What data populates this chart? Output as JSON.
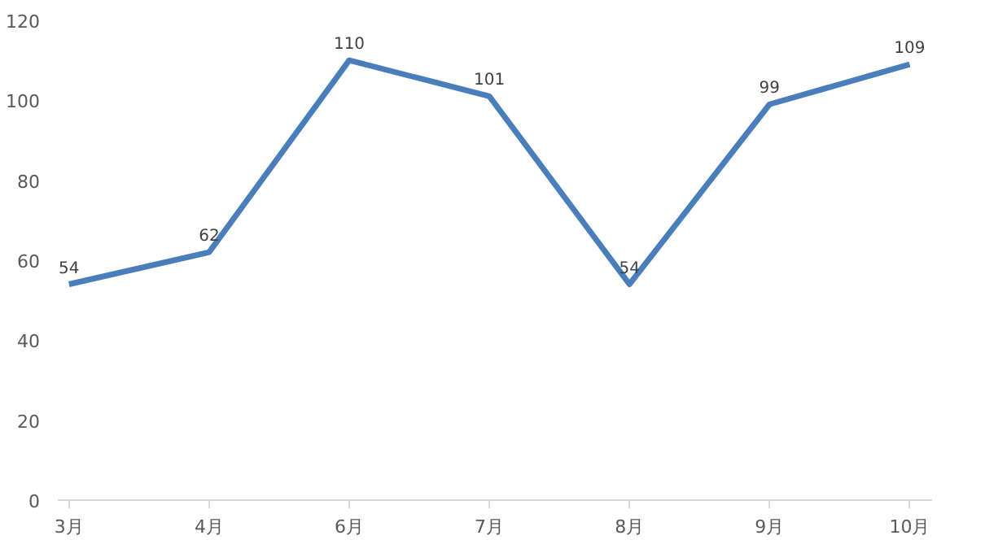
{
  "chart_data": {
    "type": "line",
    "categories": [
      "3月",
      "4月",
      "6月",
      "7月",
      "8月",
      "9月",
      "10月"
    ],
    "series": [
      {
        "color": "#4a7ebb",
        "values": [
          54,
          62,
          110,
          101,
          54,
          99,
          109
        ]
      }
    ],
    "ylim": [
      0,
      120
    ],
    "yticks": [
      0,
      20,
      40,
      60,
      80,
      100,
      120
    ],
    "grid": false,
    "data_labels": true,
    "marker": "none",
    "line_style": "solid"
  }
}
